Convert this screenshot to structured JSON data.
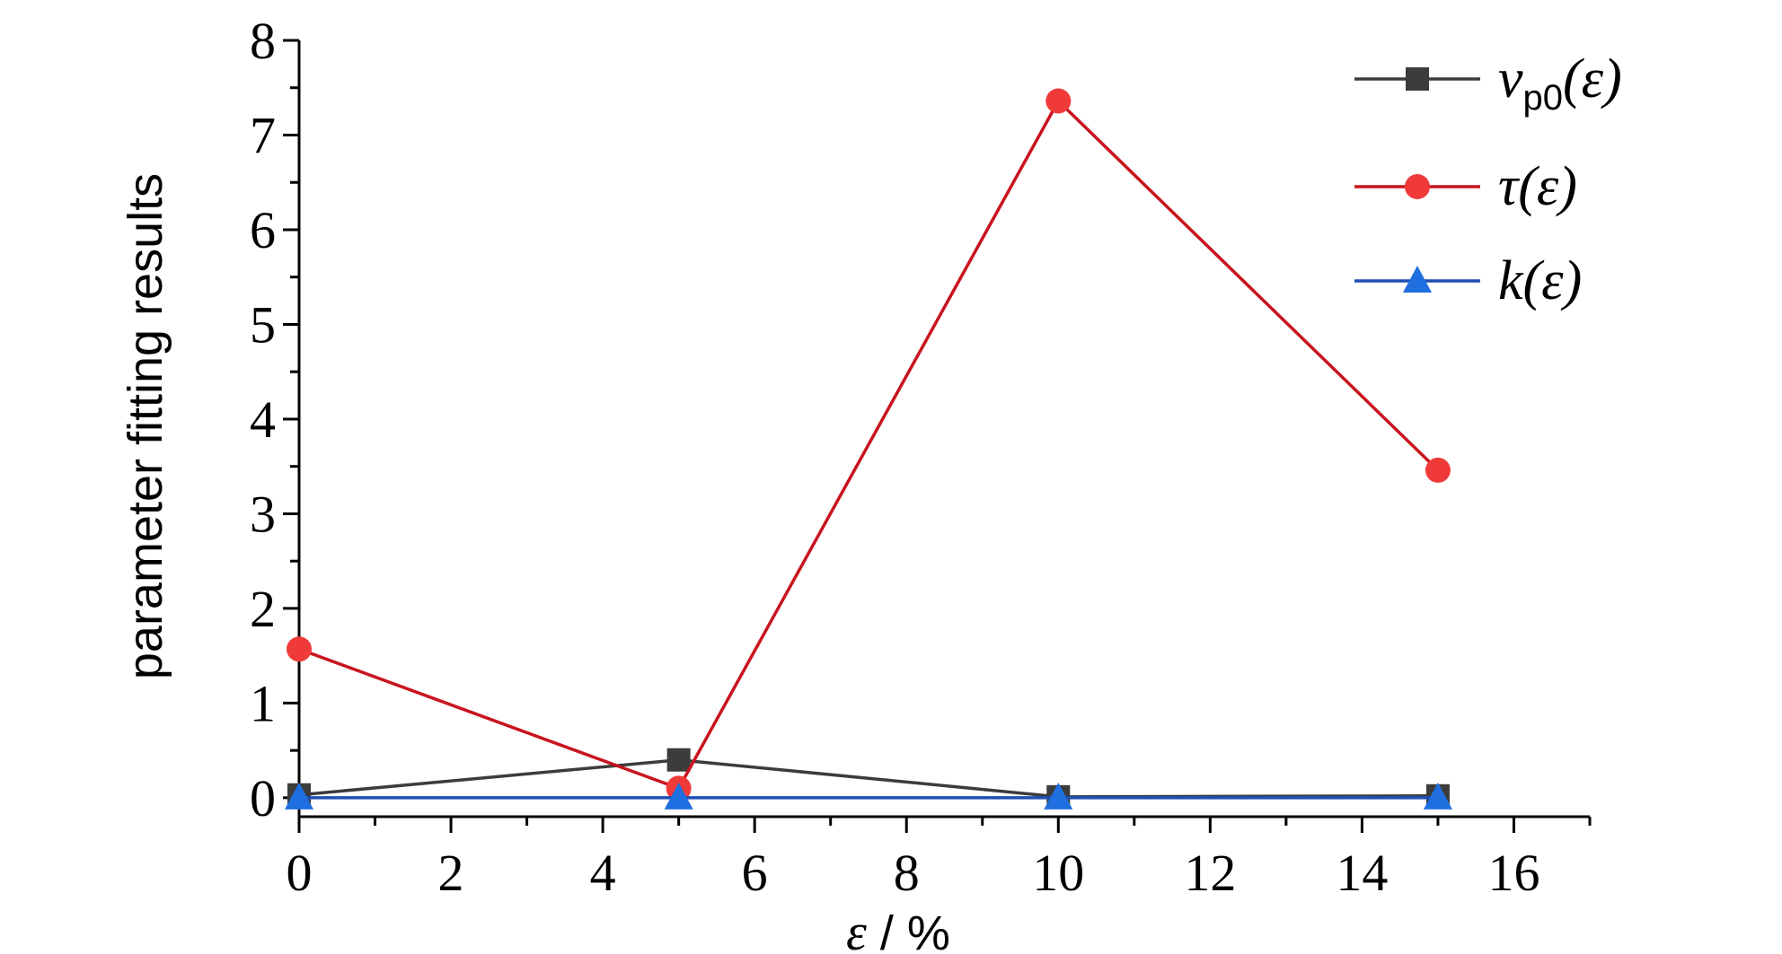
{
  "chart_data": {
    "type": "line",
    "xlabel": {
      "symbol": "ε",
      "rest": " / %"
    },
    "ylabel": "parameter fitting results",
    "xlim": [
      0,
      17
    ],
    "ylim": [
      -0.2,
      8
    ],
    "x_ticks": [
      0,
      2,
      4,
      6,
      8,
      10,
      12,
      14,
      16
    ],
    "y_ticks": [
      0,
      1,
      2,
      3,
      4,
      5,
      6,
      7,
      8
    ],
    "grid": false,
    "legend_position": "top-right",
    "series": [
      {
        "key": "vp0",
        "name_main": "ν",
        "name_sub": "p0",
        "name_tail": "(ε)",
        "marker": "square",
        "color": "#3c3c3c",
        "x": [
          0,
          5,
          10,
          15
        ],
        "y": [
          0.03,
          0.4,
          0.01,
          0.02
        ]
      },
      {
        "key": "tau",
        "name_main": "τ(ε)",
        "name_sub": "",
        "name_tail": "",
        "marker": "circle",
        "color": "#c8141e",
        "marker_color": "#f03a3a",
        "x": [
          0,
          5,
          10,
          15
        ],
        "y": [
          1.57,
          0.1,
          7.36,
          3.46
        ]
      },
      {
        "key": "k",
        "name_main": "k(ε)",
        "name_sub": "",
        "name_tail": "",
        "marker": "triangle",
        "color": "#1f4fb4",
        "marker_color": "#1f6fe0",
        "x": [
          0,
          5,
          10,
          15
        ],
        "y": [
          0.0,
          0.0,
          0.0,
          0.0
        ]
      }
    ]
  }
}
